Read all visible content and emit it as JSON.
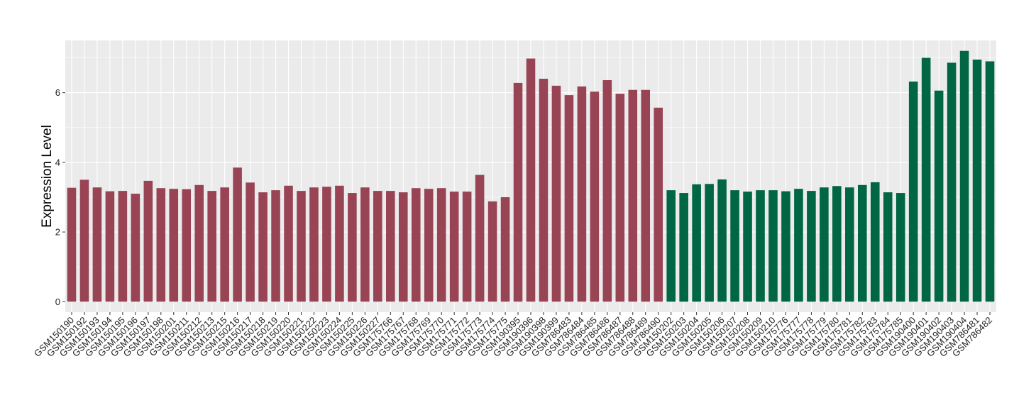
{
  "chart_data": {
    "type": "bar",
    "ylabel": "Expression Level",
    "xlabel": "",
    "title": "",
    "ylim": [
      -0.3,
      7.5
    ],
    "y_ticks": [
      0,
      2,
      4,
      6
    ],
    "y_tick_labels": [
      "0",
      "2",
      "4",
      "6"
    ],
    "grid": true,
    "legend": "none",
    "background_color": "#EBEBEB",
    "grid_color": "#FFFFFF",
    "group_colors": {
      "group1": "#994455",
      "group2": "#006644"
    },
    "categories": [
      "GSM150190",
      "GSM150192",
      "GSM150193",
      "GSM150194",
      "GSM150195",
      "GSM150196",
      "GSM150197",
      "GSM150198",
      "GSM150201",
      "GSM150211",
      "GSM150212",
      "GSM150213",
      "GSM150215",
      "GSM150216",
      "GSM150217",
      "GSM150218",
      "GSM150219",
      "GSM150220",
      "GSM150221",
      "GSM150222",
      "GSM150223",
      "GSM150224",
      "GSM150225",
      "GSM150226",
      "GSM150227",
      "GSM175766",
      "GSM175767",
      "GSM175768",
      "GSM175769",
      "GSM175770",
      "GSM175771",
      "GSM175772",
      "GSM175773",
      "GSM175774",
      "GSM175775",
      "GSM190395",
      "GSM190396",
      "GSM190398",
      "GSM190399",
      "GSM786483",
      "GSM786484",
      "GSM786485",
      "GSM786486",
      "GSM786487",
      "GSM786488",
      "GSM786489",
      "GSM786490",
      "GSM150202",
      "GSM150203",
      "GSM150204",
      "GSM150205",
      "GSM150206",
      "GSM150207",
      "GSM150208",
      "GSM150209",
      "GSM150210",
      "GSM175776",
      "GSM175777",
      "GSM175778",
      "GSM175779",
      "GSM175780",
      "GSM175781",
      "GSM175782",
      "GSM175783",
      "GSM175784",
      "GSM175785",
      "GSM190400",
      "GSM190401",
      "GSM190402",
      "GSM190403",
      "GSM190404",
      "GSM786481",
      "GSM786482"
    ],
    "values": [
      3.27,
      3.5,
      3.28,
      3.17,
      3.18,
      3.1,
      3.47,
      3.26,
      3.24,
      3.23,
      3.35,
      3.18,
      3.28,
      3.85,
      3.42,
      3.14,
      3.2,
      3.33,
      3.18,
      3.28,
      3.3,
      3.33,
      3.12,
      3.28,
      3.18,
      3.18,
      3.14,
      3.26,
      3.24,
      3.26,
      3.16,
      3.16,
      3.64,
      2.88,
      3.0,
      6.28,
      6.98,
      6.4,
      6.2,
      5.93,
      6.18,
      6.03,
      6.36,
      5.97,
      6.08,
      6.08,
      5.57,
      3.2,
      3.12,
      3.37,
      3.38,
      3.51,
      3.2,
      3.16,
      3.2,
      3.2,
      3.17,
      3.24,
      3.18,
      3.28,
      3.32,
      3.28,
      3.35,
      3.43,
      3.14,
      3.12,
      6.32,
      7.0,
      6.06,
      6.86,
      7.2,
      6.95,
      6.9
    ],
    "groups": [
      "group1",
      "group1",
      "group1",
      "group1",
      "group1",
      "group1",
      "group1",
      "group1",
      "group1",
      "group1",
      "group1",
      "group1",
      "group1",
      "group1",
      "group1",
      "group1",
      "group1",
      "group1",
      "group1",
      "group1",
      "group1",
      "group1",
      "group1",
      "group1",
      "group1",
      "group1",
      "group1",
      "group1",
      "group1",
      "group1",
      "group1",
      "group1",
      "group1",
      "group1",
      "group1",
      "group1",
      "group1",
      "group1",
      "group1",
      "group1",
      "group1",
      "group1",
      "group1",
      "group1",
      "group1",
      "group1",
      "group1",
      "group2",
      "group2",
      "group2",
      "group2",
      "group2",
      "group2",
      "group2",
      "group2",
      "group2",
      "group2",
      "group2",
      "group2",
      "group2",
      "group2",
      "group2",
      "group2",
      "group2",
      "group2",
      "group2",
      "group2",
      "group2",
      "group2",
      "group2",
      "group2",
      "group2",
      "group2"
    ]
  }
}
